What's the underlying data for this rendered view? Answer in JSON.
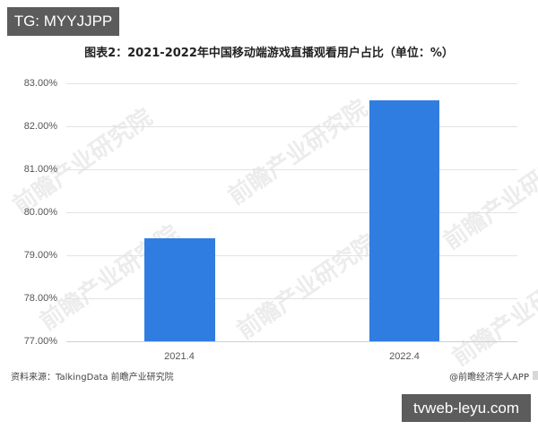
{
  "overlay": {
    "top_badge": "TG: MYYJJPP",
    "bottom_badge": "tvweb-leyu.com"
  },
  "watermark_text": "前瞻产业研究院",
  "footer": {
    "source": "资料来源：TalkingData 前瞻产业研究院",
    "credit": "@前瞻经济学人APP"
  },
  "colors": {
    "bar": "#2f7de1",
    "grid": "#e2e2e2"
  },
  "y_ticks": [
    "83.00%",
    "82.00%",
    "81.00%",
    "80.00%",
    "79.00%",
    "78.00%",
    "77.00%"
  ],
  "chart_data": {
    "type": "bar",
    "title": "图表2：2021-2022年中国移动端游戏直播观看用户占比（单位：%）",
    "categories": [
      "2021.4",
      "2022.4"
    ],
    "values": [
      79.4,
      82.6
    ],
    "xlabel": "",
    "ylabel": "",
    "ylim": [
      77,
      83
    ],
    "y_tick_step": 1,
    "grid": true,
    "legend": "none",
    "unit": "%"
  }
}
